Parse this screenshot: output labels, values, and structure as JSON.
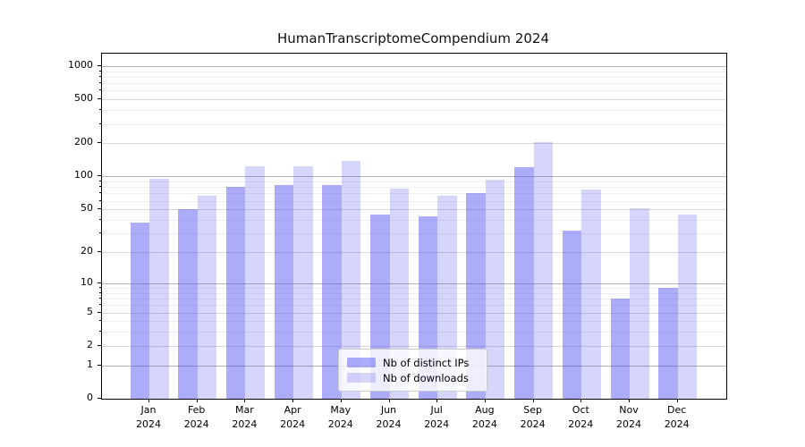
{
  "chart_data": {
    "type": "bar",
    "title": "HumanTranscriptomeCompendium 2024",
    "categories": [
      "Jan",
      "Feb",
      "Mar",
      "Apr",
      "May",
      "Jun",
      "Jul",
      "Aug",
      "Sep",
      "Oct",
      "Nov",
      "Dec"
    ],
    "year_label": "2024",
    "series": [
      {
        "name": "Nb of distinct IPs",
        "color": "rgba(70,70,240,0.45)",
        "values": [
          38,
          50,
          80,
          83,
          83,
          45,
          43,
          71,
          122,
          32,
          7,
          9
        ]
      },
      {
        "name": "Nb of downloads",
        "color": "rgba(70,70,240,0.22)",
        "values": [
          95,
          67,
          125,
          125,
          140,
          78,
          67,
          94,
          204,
          76,
          51,
          45
        ]
      }
    ],
    "yscale": "log1p",
    "yticks": [
      0,
      1,
      2,
      5,
      10,
      20,
      50,
      100,
      200,
      500,
      1000
    ],
    "ylim": [
      0,
      1300
    ],
    "xlabel": "",
    "ylabel": "",
    "grid": true,
    "legend_position": "lower center",
    "colors": {
      "grid_major": "#b4b4b4",
      "grid_secondary": "#d9d9d9",
      "grid_minor": "#efefef",
      "spine": "#000000",
      "legend_border": "#cccccc"
    }
  }
}
